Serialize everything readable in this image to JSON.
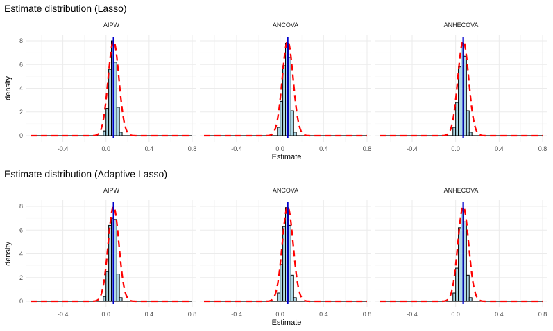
{
  "colors": {
    "bar_fill": "#add8e6",
    "bar_stroke": "#000000",
    "density_curve": "#ff0000",
    "truth_line": "#0000cd",
    "grid_major": "#ebebeb",
    "grid_minor": "#f5f5f5"
  },
  "chart_data": [
    {
      "type": "bar",
      "title": "Estimate distribution (Lasso)",
      "xlabel": "Estimate",
      "ylabel": "density",
      "xlim": [
        -0.7,
        0.8
      ],
      "ylim": [
        0,
        8
      ],
      "xticks": [
        "-0.4",
        "0.0",
        "0.4",
        "0.8"
      ],
      "yticks": [
        "0",
        "2",
        "4",
        "6",
        "8"
      ],
      "xtick_values": [
        -0.4,
        0.0,
        0.4,
        0.8
      ],
      "ytick_values": [
        0,
        2,
        4,
        6,
        8
      ],
      "grid": true,
      "bin_edges": [
        -0.05,
        -0.025,
        0.0,
        0.025,
        0.05,
        0.075,
        0.1,
        0.125,
        0.15,
        0.175
      ],
      "truth_line_x": 0.07,
      "density_curve": {
        "style": "dashed",
        "mean": 0.07,
        "sd": 0.05
      },
      "facets": [
        {
          "label": "AIPW",
          "values": [
            0.0,
            0.4,
            2.3,
            5.6,
            8.0,
            6.2,
            2.4,
            0.3,
            0.0
          ]
        },
        {
          "label": "ANCOVA",
          "values": [
            0.0,
            0.7,
            2.9,
            5.9,
            7.8,
            6.6,
            2.1,
            0.3,
            0.0
          ]
        },
        {
          "label": "ANHECOVA",
          "values": [
            0.0,
            0.7,
            2.8,
            5.8,
            7.8,
            6.7,
            2.1,
            0.3,
            0.0
          ]
        }
      ]
    },
    {
      "type": "bar",
      "title": "Estimate distribution (Adaptive Lasso)",
      "xlabel": "Estimate",
      "ylabel": "density",
      "xlim": [
        -0.7,
        0.8
      ],
      "ylim": [
        0,
        8
      ],
      "xticks": [
        "-0.4",
        "0.0",
        "0.4",
        "0.8"
      ],
      "yticks": [
        "0",
        "2",
        "4",
        "6",
        "8"
      ],
      "xtick_values": [
        -0.4,
        0.0,
        0.4,
        0.8
      ],
      "ytick_values": [
        0,
        2,
        4,
        6,
        8
      ],
      "grid": true,
      "bin_edges": [
        -0.05,
        -0.025,
        0.0,
        0.025,
        0.05,
        0.075,
        0.1,
        0.125,
        0.15,
        0.175
      ],
      "truth_line_x": 0.07,
      "density_curve": {
        "style": "dashed",
        "mean": 0.07,
        "sd": 0.05
      },
      "facets": [
        {
          "label": "AIPW",
          "values": [
            0.0,
            0.4,
            2.5,
            6.4,
            7.0,
            6.9,
            2.3,
            0.3,
            0.0
          ]
        },
        {
          "label": "ANCOVA",
          "values": [
            0.0,
            0.7,
            3.1,
            6.3,
            7.9,
            6.4,
            2.2,
            0.3,
            0.0
          ]
        },
        {
          "label": "ANHECOVA",
          "values": [
            0.0,
            0.7,
            2.8,
            6.2,
            7.8,
            6.7,
            2.2,
            0.3,
            0.0
          ]
        }
      ]
    }
  ]
}
